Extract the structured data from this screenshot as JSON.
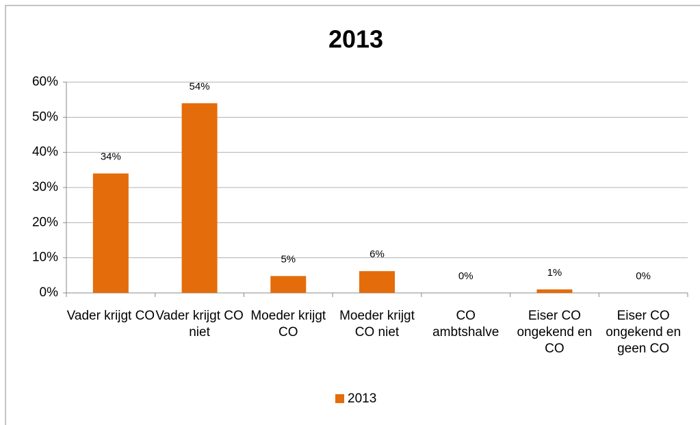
{
  "chart_data": {
    "type": "bar",
    "title": "2013",
    "categories": [
      "Vader krijgt CO",
      "Vader krijgt CO niet",
      "Moeder krijgt CO",
      "Moeder krijgt CO niet",
      "CO ambtshalve",
      "Eiser CO ongekend en CO",
      "Eiser CO ongekend en geen CO"
    ],
    "series": [
      {
        "name": "2013",
        "color": "#e46c0a",
        "values": [
          34,
          54,
          4.8,
          6.2,
          0,
          1,
          0
        ],
        "value_labels": [
          "34%",
          "54%",
          "5%",
          "6%",
          "0%",
          "1%",
          "0%"
        ]
      }
    ],
    "ylim": [
      0,
      60
    ],
    "yticks": [
      {
        "value": 0,
        "label": "0%"
      },
      {
        "value": 10,
        "label": "10%"
      },
      {
        "value": 20,
        "label": "20%"
      },
      {
        "value": 30,
        "label": "30%"
      },
      {
        "value": 40,
        "label": "40%"
      },
      {
        "value": 50,
        "label": "50%"
      },
      {
        "value": 60,
        "label": "60%"
      }
    ],
    "grid": true,
    "legend": "bottom"
  }
}
